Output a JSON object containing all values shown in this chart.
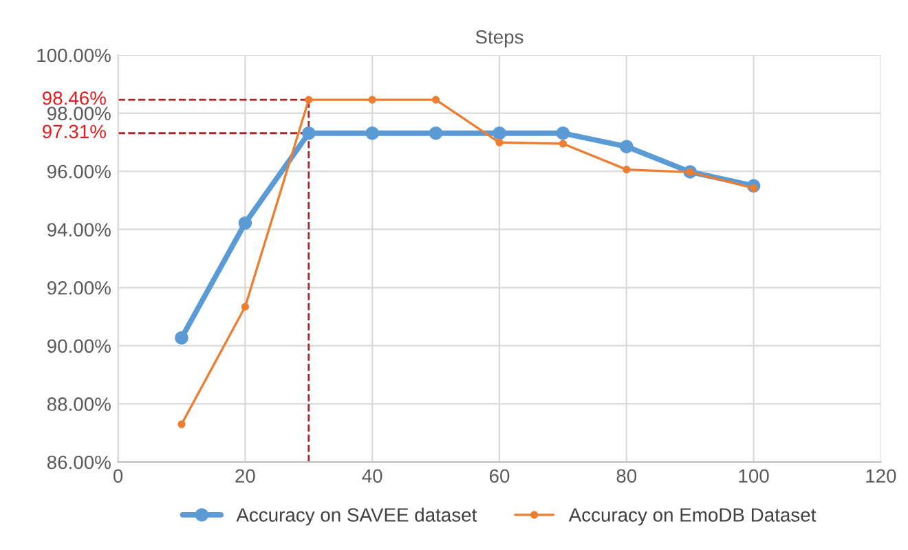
{
  "chart_data": {
    "type": "line",
    "title": "Steps",
    "x": [
      10,
      20,
      30,
      40,
      50,
      60,
      70,
      80,
      90,
      100
    ],
    "series": [
      {
        "name": "Accuracy on SAVEE dataset",
        "color": "#5b9bd5",
        "values": [
          90.27,
          94.22,
          97.31,
          97.31,
          97.31,
          97.31,
          97.31,
          96.85,
          95.98,
          95.5
        ]
      },
      {
        "name": "Accuracy on EmoDB Dataset",
        "color": "#ed7d31",
        "values": [
          87.3,
          91.34,
          98.46,
          98.46,
          98.46,
          96.99,
          96.95,
          96.06,
          95.97,
          95.42
        ]
      }
    ],
    "xlim": [
      0,
      120
    ],
    "xticks": [
      0,
      20,
      40,
      60,
      80,
      100,
      120
    ],
    "ylim": [
      86,
      100
    ],
    "yticks": [
      {
        "value": 86,
        "label": "86.00%"
      },
      {
        "value": 88,
        "label": "88.00%"
      },
      {
        "value": 90,
        "label": "90.00%"
      },
      {
        "value": 92,
        "label": "92.00%"
      },
      {
        "value": 94,
        "label": "94.00%"
      },
      {
        "value": 96,
        "label": "96.00%"
      },
      {
        "value": 98,
        "label": "98.00%"
      },
      {
        "value": 100,
        "label": "100.00%"
      }
    ],
    "ref_lines": [
      {
        "axis": "y",
        "value": 98.46,
        "label": "98.46%",
        "color": "#9e2a2b",
        "line_style": "dashed"
      },
      {
        "axis": "y",
        "value": 97.31,
        "label": "97.31%",
        "color": "#9e2a2b",
        "line_style": "dashed"
      },
      {
        "axis": "x",
        "value": 30,
        "color": "#9e2a2b",
        "line_style": "dashed"
      }
    ],
    "grid": true,
    "legend": "bottom",
    "marker": "circle",
    "line_style": "solid"
  }
}
